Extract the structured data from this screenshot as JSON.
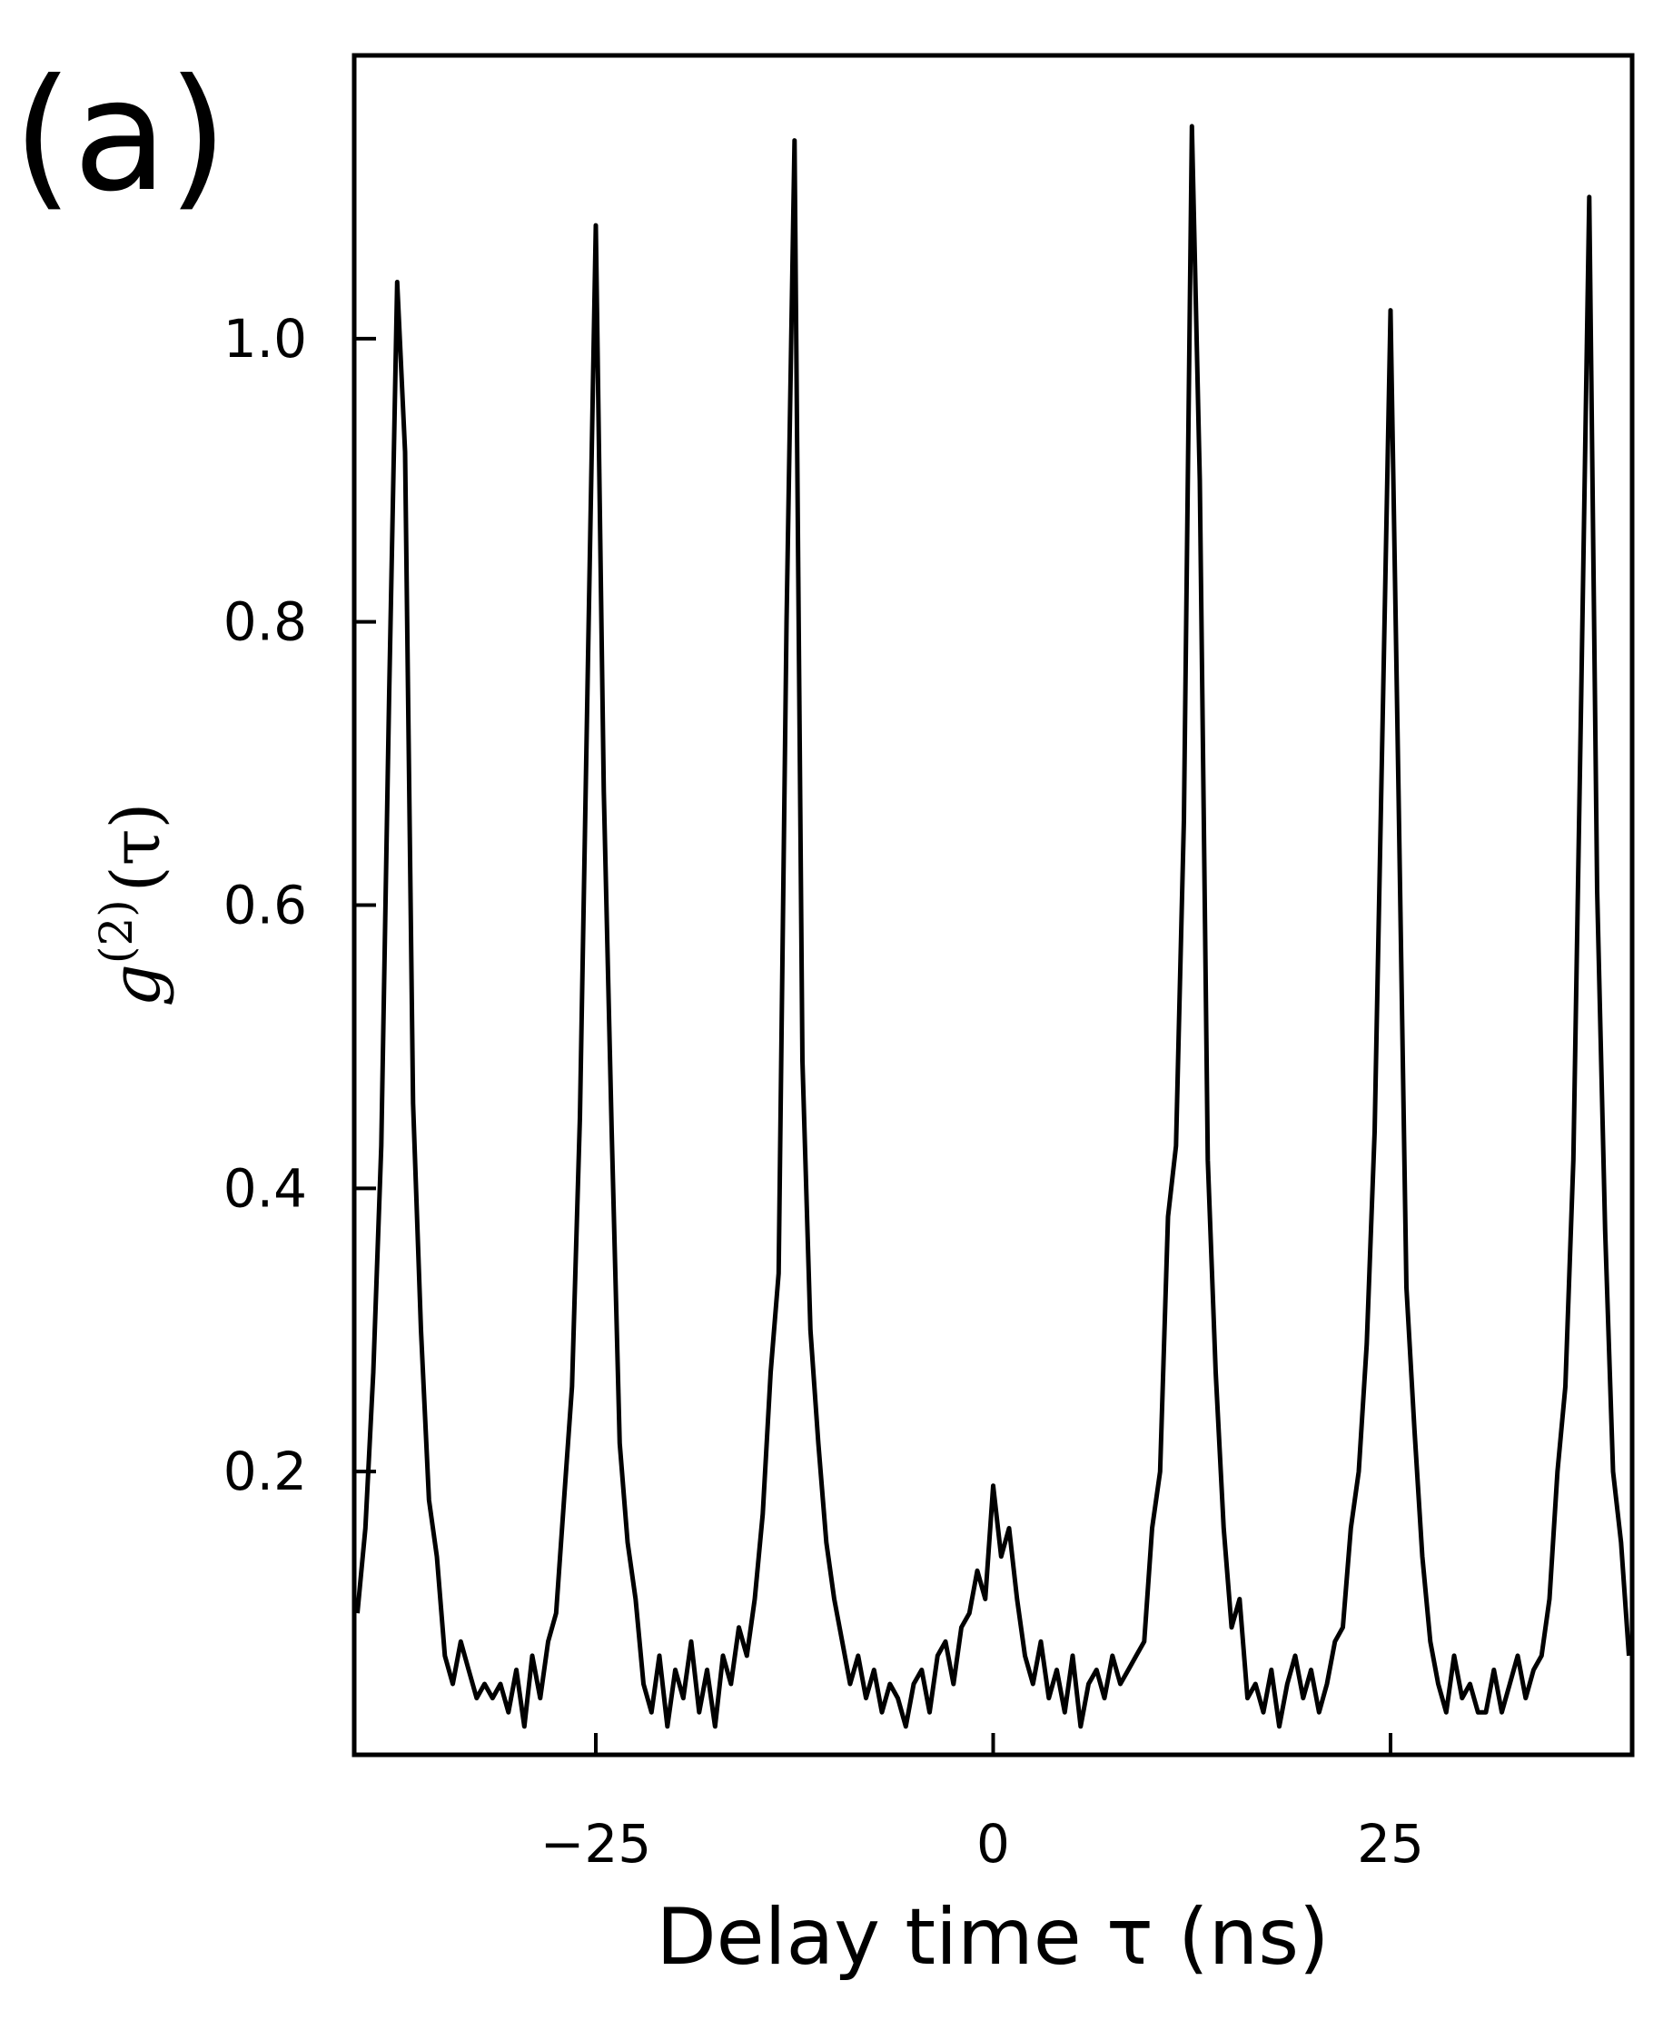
{
  "chart_data": {
    "type": "line",
    "panel_label": "(a)",
    "xlabel": "Delay time τ (ns)",
    "ylabel": [
      "g",
      "(2)",
      "(τ)"
    ],
    "color": "#000000",
    "xlim": [
      -40.2,
      40.2
    ],
    "ylim": [
      0,
      1.2
    ],
    "xticks": [
      {
        "value": -25,
        "label": "−25"
      },
      0,
      25
    ],
    "yticks": [
      0.2,
      0.4,
      0.6,
      0.8,
      {
        "value": 1,
        "label": "1.0"
      }
    ],
    "x": [
      -40,
      -39.5,
      -39,
      -38.5,
      -38,
      -37.5,
      -37,
      -36.5,
      -36,
      -35.5,
      -35,
      -34.5,
      -34,
      -33.5,
      -33,
      -32.5,
      -32,
      -31.5,
      -31,
      -30.5,
      -30,
      -29.5,
      -29,
      -28.5,
      -28,
      -27.5,
      -27,
      -26.5,
      -26,
      -25.5,
      -25,
      -24.5,
      -24,
      -23.5,
      -23,
      -22.5,
      -22,
      -21.5,
      -21,
      -20.5,
      -20,
      -19.5,
      -19,
      -18.5,
      -18,
      -17.5,
      -17,
      -16.5,
      -16,
      -15.5,
      -15,
      -14.5,
      -14,
      -13.5,
      -13,
      -12.5,
      -12,
      -11.5,
      -11,
      -10.5,
      -10,
      -9.5,
      -9,
      -8.5,
      -8,
      -7.5,
      -7,
      -6.5,
      -6,
      -5.5,
      -5,
      -4.5,
      -4,
      -3.5,
      -3,
      -2.5,
      -2,
      -1.5,
      -1,
      -0.5,
      0,
      0.5,
      1,
      1.5,
      2,
      2.5,
      3,
      3.5,
      4,
      4.5,
      5,
      5.5,
      6,
      6.5,
      7,
      7.5,
      8,
      8.5,
      9,
      9.5,
      10,
      10.5,
      11,
      11.5,
      12,
      12.5,
      13,
      13.5,
      14,
      14.5,
      15,
      15.5,
      16,
      16.5,
      17,
      17.5,
      18,
      18.5,
      19,
      19.5,
      20,
      20.5,
      21,
      21.5,
      22,
      22.5,
      23,
      23.5,
      24,
      24.5,
      25,
      25.5,
      26,
      26.5,
      27,
      27.5,
      28,
      28.5,
      29,
      29.5,
      30,
      30.5,
      31,
      31.5,
      32,
      32.5,
      33,
      33.5,
      34,
      34.5,
      35,
      35.5,
      36,
      36.5,
      37,
      37.5,
      38,
      38.5,
      39,
      39.5,
      40
    ],
    "values": [
      0.1,
      0.16,
      0.27,
      0.43,
      0.75,
      1.04,
      0.92,
      0.46,
      0.3,
      0.18,
      0.14,
      0.07,
      0.05,
      0.08,
      0.06,
      0.04,
      0.05,
      0.04,
      0.05,
      0.03,
      0.06,
      0.02,
      0.07,
      0.04,
      0.08,
      0.1,
      0.18,
      0.26,
      0.45,
      0.77,
      1.08,
      0.68,
      0.44,
      0.22,
      0.15,
      0.11,
      0.05,
      0.03,
      0.07,
      0.02,
      0.06,
      0.04,
      0.08,
      0.03,
      0.06,
      0.02,
      0.07,
      0.05,
      0.09,
      0.07,
      0.11,
      0.17,
      0.27,
      0.34,
      0.8,
      1.14,
      0.49,
      0.3,
      0.22,
      0.15,
      0.11,
      0.08,
      0.05,
      0.07,
      0.04,
      0.06,
      0.03,
      0.05,
      0.04,
      0.02,
      0.05,
      0.06,
      0.03,
      0.07,
      0.08,
      0.05,
      0.09,
      0.1,
      0.13,
      0.11,
      0.19,
      0.14,
      0.16,
      0.11,
      0.07,
      0.05,
      0.08,
      0.04,
      0.06,
      0.03,
      0.07,
      0.02,
      0.05,
      0.06,
      0.04,
      0.07,
      0.05,
      0.06,
      0.07,
      0.08,
      0.16,
      0.2,
      0.38,
      0.43,
      0.66,
      1.15,
      0.9,
      0.42,
      0.27,
      0.16,
      0.09,
      0.11,
      0.04,
      0.05,
      0.03,
      0.06,
      0.02,
      0.05,
      0.07,
      0.04,
      0.06,
      0.03,
      0.05,
      0.08,
      0.09,
      0.16,
      0.2,
      0.29,
      0.44,
      0.73,
      1.02,
      0.68,
      0.33,
      0.23,
      0.14,
      0.08,
      0.05,
      0.03,
      0.07,
      0.04,
      0.05,
      0.03,
      0.03,
      0.06,
      0.03,
      0.05,
      0.07,
      0.04,
      0.06,
      0.07,
      0.11,
      0.2,
      0.26,
      0.42,
      0.75,
      1.1,
      0.61,
      0.37,
      0.2,
      0.15,
      0.07
    ]
  }
}
